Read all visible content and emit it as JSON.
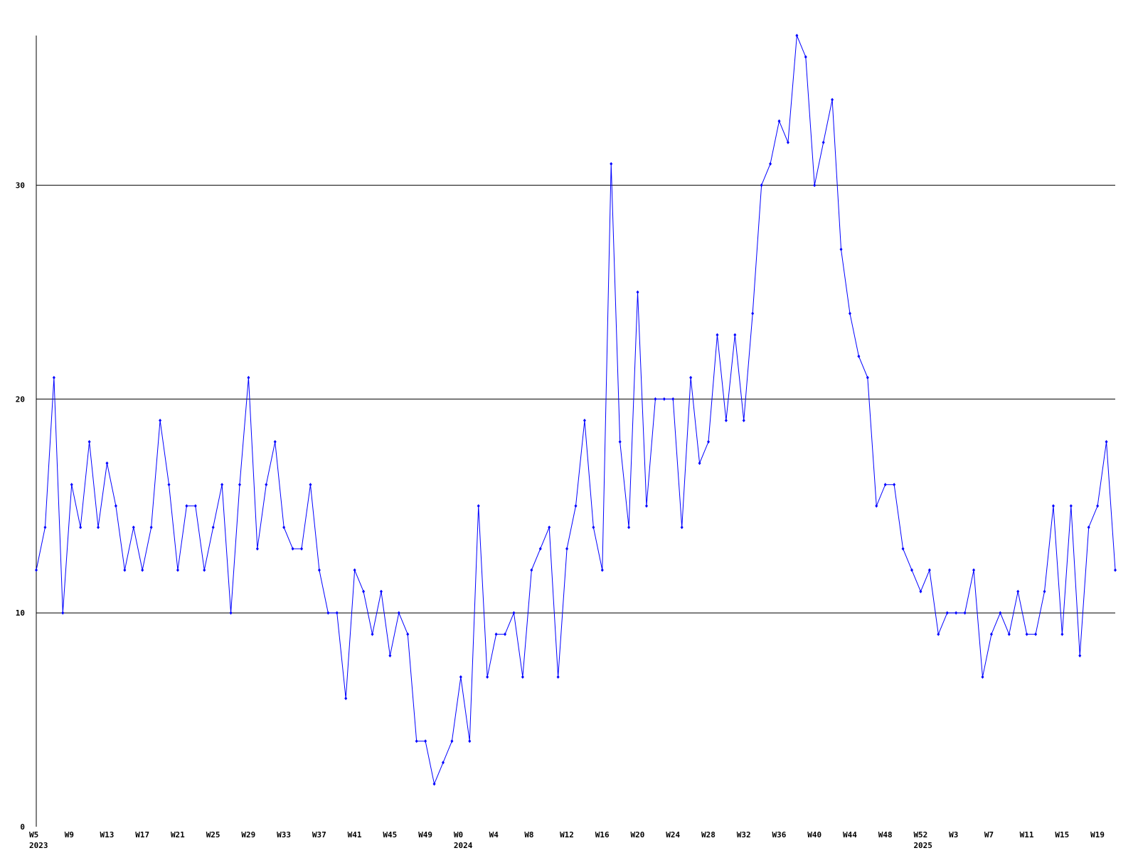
{
  "chart_data": {
    "type": "line",
    "categories": [
      "W5",
      null,
      null,
      null,
      "W9",
      null,
      null,
      null,
      "W13",
      null,
      null,
      null,
      "W17",
      null,
      null,
      null,
      "W21",
      null,
      null,
      null,
      "W25",
      null,
      null,
      null,
      "W29",
      null,
      null,
      null,
      "W33",
      null,
      null,
      null,
      "W37",
      null,
      null,
      null,
      "W41",
      null,
      null,
      null,
      "W45",
      null,
      null,
      null,
      "W49",
      null,
      null,
      null,
      "W0",
      null,
      null,
      null,
      "W4",
      null,
      null,
      null,
      "W8",
      null,
      null,
      null,
      "W12",
      null,
      null,
      null,
      "W16",
      null,
      null,
      null,
      "W20",
      null,
      null,
      null,
      "W24",
      null,
      null,
      null,
      "W28",
      null,
      null,
      null,
      "W32",
      null,
      null,
      null,
      "W36",
      null,
      null,
      null,
      "W40",
      null,
      null,
      null,
      "W44",
      null,
      null,
      null,
      "W48",
      null,
      null,
      null,
      "W52",
      null,
      null,
      null,
      "W3",
      null,
      null,
      null,
      "W7",
      null,
      null,
      null,
      "W11",
      null,
      null,
      null,
      "W15",
      null,
      null,
      null,
      "W19",
      null,
      null
    ],
    "years": [
      "2023",
      null,
      null,
      null,
      null,
      null,
      null,
      null,
      null,
      null,
      null,
      null,
      null,
      null,
      null,
      null,
      null,
      null,
      null,
      null,
      null,
      null,
      null,
      null,
      null,
      null,
      null,
      null,
      null,
      null,
      null,
      null,
      null,
      null,
      null,
      null,
      null,
      null,
      null,
      null,
      null,
      null,
      null,
      null,
      null,
      null,
      null,
      null,
      "2024",
      null,
      null,
      null,
      null,
      null,
      null,
      null,
      null,
      null,
      null,
      null,
      null,
      null,
      null,
      null,
      null,
      null,
      null,
      null,
      null,
      null,
      null,
      null,
      null,
      null,
      null,
      null,
      null,
      null,
      null,
      null,
      null,
      null,
      null,
      null,
      null,
      null,
      null,
      null,
      null,
      null,
      null,
      null,
      null,
      null,
      null,
      null,
      null,
      null,
      null,
      null,
      "2025",
      null,
      null,
      null,
      null,
      null,
      null,
      null,
      null,
      null,
      null,
      null,
      null,
      null,
      null,
      null,
      null,
      null,
      null,
      null,
      null,
      null
    ],
    "values": [
      12,
      14,
      21,
      10,
      16,
      14,
      18,
      14,
      17,
      15,
      12,
      14,
      12,
      14,
      19,
      16,
      12,
      15,
      15,
      12,
      14,
      16,
      10,
      16,
      21,
      13,
      16,
      18,
      14,
      13,
      13,
      16,
      12,
      10,
      10,
      6,
      12,
      11,
      9,
      11,
      8,
      10,
      9,
      4,
      4,
      2,
      3,
      4,
      7,
      4,
      15,
      7,
      9,
      9,
      10,
      7,
      12,
      13,
      14,
      7,
      13,
      15,
      19,
      14,
      12,
      31,
      18,
      14,
      25,
      15,
      20,
      20,
      20,
      14,
      21,
      17,
      18,
      23,
      19,
      23,
      19,
      24,
      30,
      31,
      33,
      32,
      37,
      36,
      30,
      32,
      34,
      27,
      24,
      22,
      21,
      15,
      16,
      16,
      13,
      12,
      11,
      12,
      9,
      10,
      10,
      10,
      12,
      7,
      9,
      10,
      9,
      11,
      9,
      9,
      11,
      15,
      9,
      15,
      8,
      14,
      15,
      18,
      12
    ],
    "color": "#0000ff",
    "ylim": [
      0,
      37
    ],
    "yticks": [
      0,
      10,
      20,
      30
    ],
    "grid": true
  }
}
